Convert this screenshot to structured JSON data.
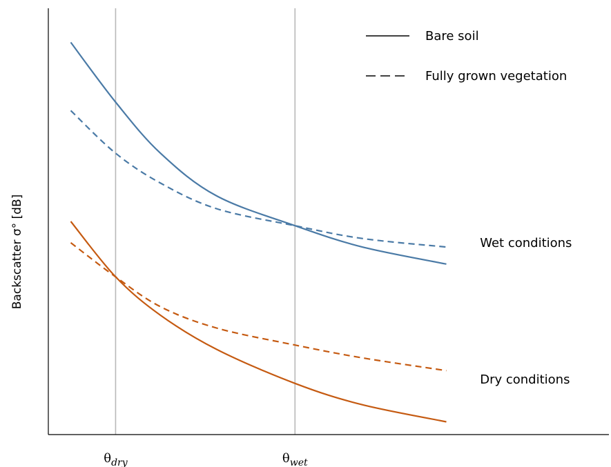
{
  "chart_data": {
    "type": "line",
    "title": "",
    "xlabel": "",
    "ylabel": "Backscatter σ° [dB]",
    "xlim": [
      0,
      1
    ],
    "ylim": [
      0,
      1
    ],
    "grid": false,
    "legend_position": "top-right",
    "ticks": [
      {
        "label": "θ",
        "sub": "dry",
        "x": 0.12
      },
      {
        "label": "θ",
        "sub": "wet",
        "x": 0.44
      }
    ],
    "legend": [
      {
        "label": "Bare soil",
        "style": "solid"
      },
      {
        "label": "Fully grown vegetation",
        "style": "dashed"
      }
    ],
    "annotations": [
      {
        "text": "Wet conditions",
        "x": 0.77,
        "y": 0.44
      },
      {
        "text": "Dry conditions",
        "x": 0.77,
        "y": 0.12
      }
    ],
    "series": [
      {
        "condition": "wet",
        "style": "solid",
        "color": "#4a7aa6",
        "x": [
          0.04,
          0.12,
          0.2,
          0.3,
          0.44,
          0.56,
          0.71
        ],
        "y": [
          0.92,
          0.78,
          0.66,
          0.56,
          0.49,
          0.44,
          0.4
        ]
      },
      {
        "condition": "wet",
        "style": "dashed",
        "color": "#4a7aa6",
        "x": [
          0.04,
          0.12,
          0.2,
          0.3,
          0.44,
          0.56,
          0.71
        ],
        "y": [
          0.76,
          0.66,
          0.59,
          0.53,
          0.49,
          0.46,
          0.44
        ]
      },
      {
        "condition": "dry",
        "style": "solid",
        "color": "#c55a11",
        "x": [
          0.04,
          0.12,
          0.2,
          0.3,
          0.44,
          0.56,
          0.71
        ],
        "y": [
          0.5,
          0.37,
          0.28,
          0.2,
          0.12,
          0.07,
          0.03
        ]
      },
      {
        "condition": "dry",
        "style": "dashed",
        "color": "#c55a11",
        "x": [
          0.04,
          0.12,
          0.2,
          0.3,
          0.44,
          0.56,
          0.71
        ],
        "y": [
          0.45,
          0.37,
          0.3,
          0.25,
          0.21,
          0.18,
          0.15
        ]
      }
    ]
  }
}
